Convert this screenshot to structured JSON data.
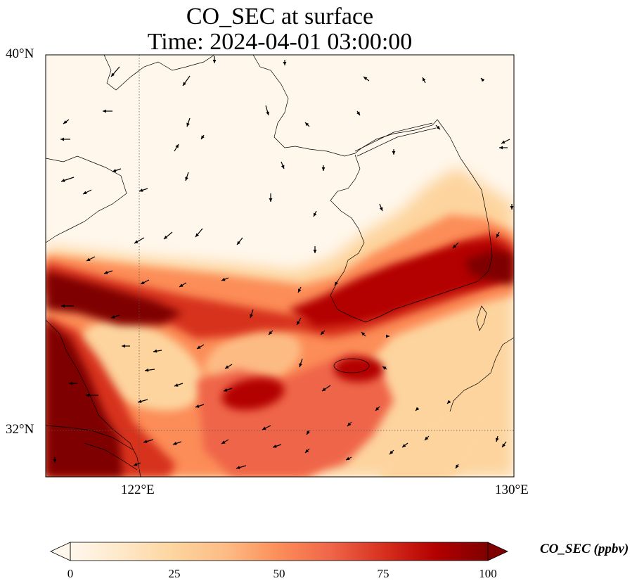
{
  "title": {
    "line1": "CO_SEC at surface",
    "line2": "Time: 2024-04-01 03:00:00"
  },
  "axes": {
    "lat_ticks": [
      "40°N",
      "32°N"
    ],
    "lon_ticks": [
      "122°E",
      "130°E"
    ],
    "lon_range": [
      120,
      130
    ],
    "lat_range": [
      31,
      40
    ],
    "gridlines": "dotted, at 122°E and 32°N"
  },
  "colorbar": {
    "label": "CO_SEC (ppbv)",
    "ticks": [
      "0",
      "25",
      "50",
      "75",
      "100"
    ],
    "min": 0,
    "max": 100,
    "colormap": "OrRd",
    "extend": "both",
    "colors": [
      "#fff7ec",
      "#fee8c8",
      "#fdd49e",
      "#fdbb84",
      "#fc8d59",
      "#ef6548",
      "#d7301f",
      "#b30000",
      "#7f0000"
    ]
  },
  "map": {
    "background": "#fff7ec",
    "coastline_color": "#000000",
    "wind_vector_color": "#000000"
  }
}
